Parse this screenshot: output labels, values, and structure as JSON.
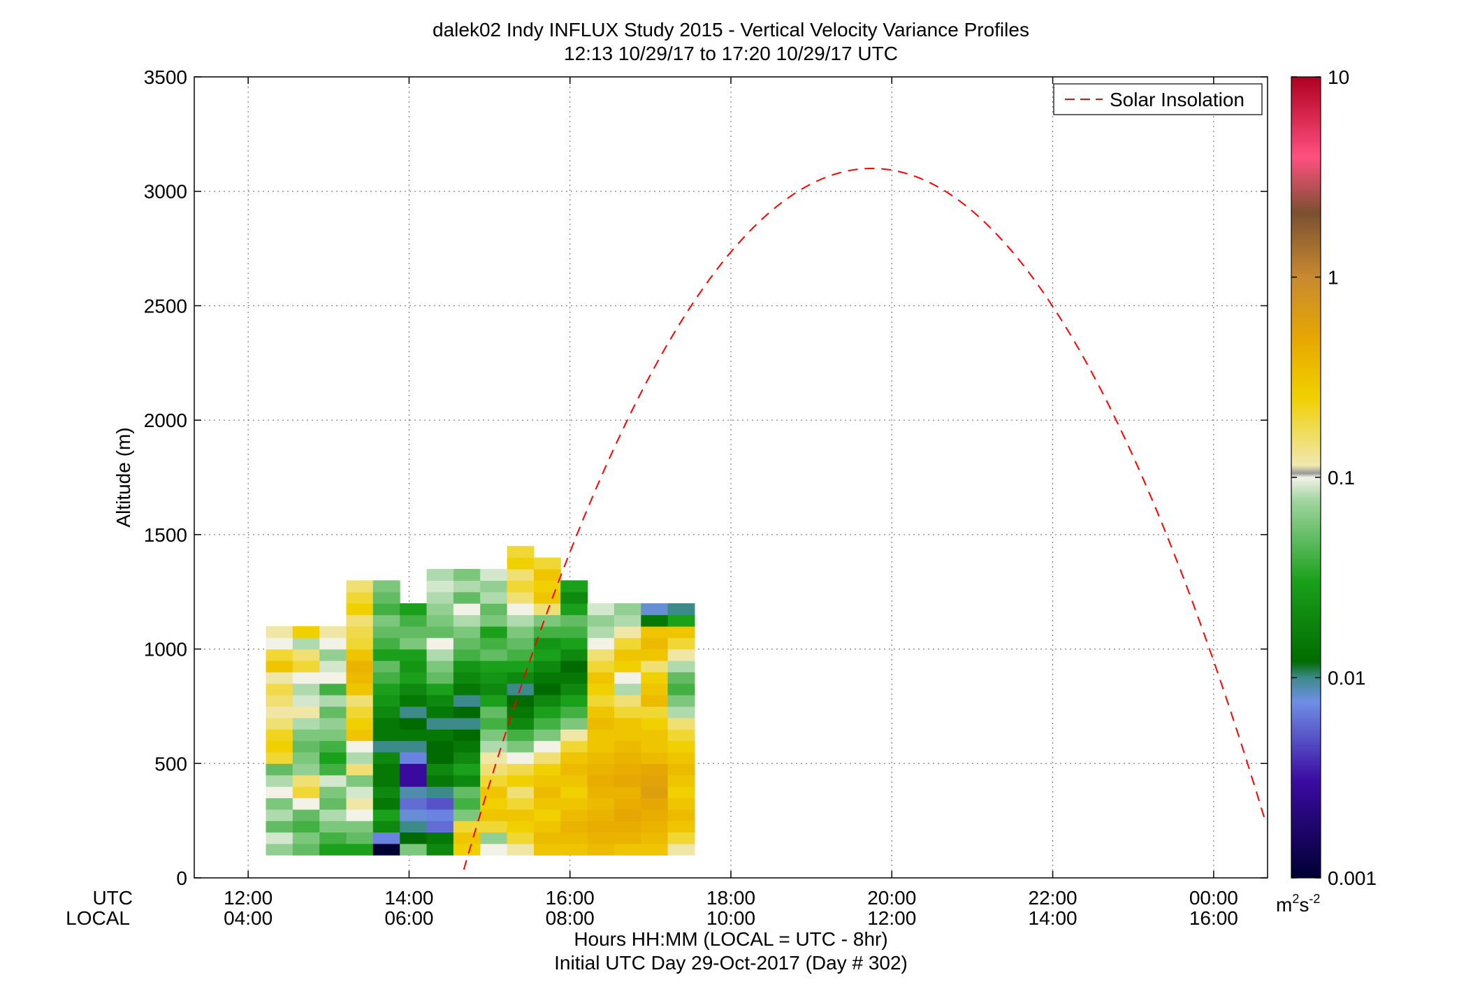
{
  "title_line1": "dalek02 Indy INFLUX Study 2015 - Vertical Velocity Variance Profiles",
  "title_line2": "12:13 10/29/17 to 17:20 10/29/17  UTC",
  "xlabel_line1": "Hours HH:MM  (LOCAL = UTC - 8hr)",
  "xlabel_line2": "Initial UTC Day 29-Oct-2017 (Day # 302)",
  "ylabel": "Altitude (m)",
  "utc_label": "UTC",
  "local_label": "LOCAL",
  "colorbar": {
    "unit_base": "m",
    "unit_sup1": "2",
    "unit_mid": "s",
    "unit_sup2": "-2",
    "ticks": [
      {
        "label": "10",
        "value": 10
      },
      {
        "label": "1",
        "value": 1
      },
      {
        "label": "0.1",
        "value": 0.1
      },
      {
        "label": "0.01",
        "value": 0.01
      },
      {
        "label": "0.001",
        "value": 0.001
      }
    ]
  },
  "chart_data": {
    "type": "heatmap",
    "x_range_hours": [
      11.33,
      24.67
    ],
    "ylim": [
      0,
      3500
    ],
    "y_ticks": [
      0,
      500,
      1000,
      1500,
      2000,
      2500,
      3000,
      3500
    ],
    "x_ticks": [
      {
        "hour": 12,
        "utc": "12:00",
        "local": "04:00"
      },
      {
        "hour": 14,
        "utc": "14:00",
        "local": "06:00"
      },
      {
        "hour": 16,
        "utc": "16:00",
        "local": "08:00"
      },
      {
        "hour": 18,
        "utc": "18:00",
        "local": "10:00"
      },
      {
        "hour": 20,
        "utc": "20:00",
        "local": "12:00"
      },
      {
        "hour": 22,
        "utc": "22:00",
        "local": "14:00"
      },
      {
        "hour": 24,
        "utc": "00:00",
        "local": "16:00"
      }
    ],
    "grid": true,
    "color_scale": "log",
    "color_range": [
      0.001,
      10
    ],
    "legend": {
      "entry": "Solar Insolation",
      "placement": "top-right",
      "style": "dashed",
      "color": "#ff0000"
    },
    "solar_insolation": {
      "peak_hour": 19.75,
      "peak_altitude": 3100,
      "half_width_hours": 5.1
    },
    "heatmap": {
      "bin_start_hour": 12.22,
      "bin_width_hours": 0.333,
      "bin_bottom_m": 100,
      "bin_height_m": 50,
      "column_tops_m": [
        1100,
        1100,
        1100,
        1300,
        1300,
        1250,
        1350,
        1350,
        1350,
        1450,
        1400,
        1300,
        1200,
        1200,
        1200,
        1200
      ],
      "values": [
        [
          0.07,
          0.09,
          0.05,
          0.08,
          0.06,
          0.1,
          0.08,
          0.05,
          0.2,
          0.25,
          0.22,
          0.15,
          0.12,
          0.15,
          0.18,
          0.12,
          0.3,
          0.2,
          0.1,
          0.12
        ],
        [
          0.05,
          0.06,
          0.04,
          0.05,
          0.1,
          0.2,
          0.15,
          0.07,
          0.06,
          0.05,
          0.06,
          0.08,
          0.12,
          0.09,
          0.08,
          0.1,
          0.2,
          0.15,
          0.08,
          0.25
        ],
        [
          0.03,
          0.04,
          0.06,
          0.08,
          0.05,
          0.06,
          0.09,
          0.04,
          0.03,
          0.04,
          0.06,
          0.07,
          0.05,
          0.08,
          0.04,
          0.1,
          0.09,
          0.07,
          0.1,
          0.12
        ],
        [
          0.03,
          0.05,
          0.06,
          0.1,
          0.12,
          0.09,
          0.06,
          0.15,
          0.08,
          0.1,
          0.3,
          0.25,
          0.2,
          0.15,
          0.3,
          0.35,
          0.4,
          0.3,
          0.2,
          0.18,
          0.15,
          0.25,
          0.2,
          0.15
        ],
        [
          0.001,
          0.007,
          0.02,
          0.03,
          0.015,
          0.02,
          0.015,
          0.015,
          0.02,
          0.01,
          0.015,
          0.015,
          0.02,
          0.025,
          0.03,
          0.04,
          0.05,
          0.03,
          0.04,
          0.05,
          0.06,
          0.04,
          0.05,
          0.06
        ],
        [
          0.06,
          0.012,
          0.01,
          0.008,
          0.006,
          0.009,
          0.003,
          0.003,
          0.007,
          0.01,
          0.015,
          0.012,
          0.01,
          0.015,
          0.02,
          0.03,
          0.025,
          0.03,
          0.06,
          0.05,
          0.04,
          0.03
        ],
        [
          0.02,
          0.015,
          0.006,
          0.007,
          0.005,
          0.01,
          0.015,
          0.02,
          0.012,
          0.012,
          0.015,
          0.01,
          0.015,
          0.02,
          0.03,
          0.05,
          0.06,
          0.08,
          0.1,
          0.05,
          0.06,
          0.07,
          0.08,
          0.09,
          0.08
        ],
        [
          0.25,
          0.3,
          0.2,
          0.06,
          0.04,
          0.05,
          0.02,
          0.03,
          0.02,
          0.015,
          0.012,
          0.01,
          0.012,
          0.01,
          0.015,
          0.02,
          0.025,
          0.04,
          0.05,
          0.06,
          0.08,
          0.1,
          0.05,
          0.08,
          0.06
        ],
        [
          0.1,
          0.07,
          0.2,
          0.3,
          0.25,
          0.3,
          0.2,
          0.15,
          0.12,
          0.08,
          0.06,
          0.04,
          0.05,
          0.03,
          0.02,
          0.025,
          0.03,
          0.05,
          0.04,
          0.03,
          0.06,
          0.05,
          0.08,
          0.07,
          0.09
        ],
        [
          0.12,
          0.2,
          0.25,
          0.3,
          0.2,
          0.15,
          0.25,
          0.18,
          0.1,
          0.06,
          0.04,
          0.02,
          0.015,
          0.012,
          0.01,
          0.02,
          0.03,
          0.04,
          0.05,
          0.06,
          0.08,
          0.1,
          0.15,
          0.2,
          0.15,
          0.25,
          0.2
        ],
        [
          0.3,
          0.35,
          0.3,
          0.25,
          0.3,
          0.35,
          0.3,
          0.25,
          0.15,
          0.1,
          0.06,
          0.04,
          0.03,
          0.02,
          0.012,
          0.015,
          0.02,
          0.03,
          0.025,
          0.04,
          0.06,
          0.15,
          0.3,
          0.25,
          0.3,
          0.2
        ],
        [
          0.3,
          0.35,
          0.4,
          0.35,
          0.3,
          0.25,
          0.3,
          0.35,
          0.3,
          0.2,
          0.12,
          0.06,
          0.04,
          0.03,
          0.02,
          0.015,
          0.012,
          0.02,
          0.03,
          0.04,
          0.05,
          0.03,
          0.02,
          0.03
        ],
        [
          0.35,
          0.4,
          0.45,
          0.4,
          0.35,
          0.4,
          0.45,
          0.4,
          0.35,
          0.3,
          0.3,
          0.35,
          0.3,
          0.2,
          0.25,
          0.3,
          0.2,
          0.15,
          0.1,
          0.08,
          0.07,
          0.09
        ],
        [
          0.3,
          0.4,
          0.45,
          0.5,
          0.45,
          0.4,
          0.5,
          0.45,
          0.4,
          0.35,
          0.3,
          0.3,
          0.2,
          0.15,
          0.08,
          0.1,
          0.25,
          0.3,
          0.2,
          0.12,
          0.08,
          0.07
        ],
        [
          0.3,
          0.35,
          0.4,
          0.45,
          0.5,
          0.6,
          0.55,
          0.5,
          0.35,
          0.3,
          0.3,
          0.25,
          0.2,
          0.35,
          0.3,
          0.25,
          0.15,
          0.3,
          0.35,
          0.3,
          0.015,
          0.008
        ],
        [
          0.12,
          0.2,
          0.3,
          0.35,
          0.3,
          0.25,
          0.3,
          0.35,
          0.3,
          0.25,
          0.2,
          0.15,
          0.08,
          0.06,
          0.04,
          0.05,
          0.08,
          0.12,
          0.2,
          0.3,
          0.03,
          0.01
        ]
      ]
    }
  }
}
